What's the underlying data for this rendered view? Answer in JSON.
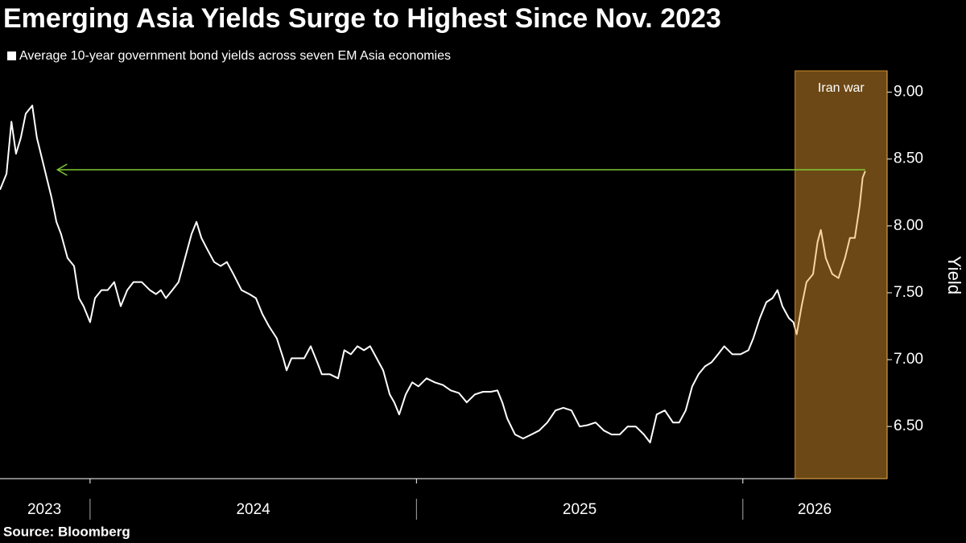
{
  "chart_data": {
    "type": "line",
    "title": "Emerging Asia Yields Surge to Highest Since Nov. 2023",
    "source": "Source: Bloomberg",
    "y_axis_label": "Yield",
    "ylim": [
      6.11,
      9.16
    ],
    "yticks": [
      {
        "value": 6.5,
        "label": "6.50"
      },
      {
        "value": 7,
        "label": "7.00"
      },
      {
        "value": 7.5,
        "label": "7.50"
      },
      {
        "value": 8,
        "label": "8.00"
      },
      {
        "value": 8.5,
        "label": "8.50"
      },
      {
        "value": 9,
        "label": "9.00"
      }
    ],
    "xlim": [
      2023.724,
      2026.442
    ],
    "xticks": [
      {
        "value": 2023.86,
        "label": "2023"
      },
      {
        "value": 2024.5,
        "label": "2024"
      },
      {
        "value": 2025.5,
        "label": "2025"
      },
      {
        "value": 2026.22,
        "label": "2026"
      }
    ],
    "xdividers": [
      2024,
      2025,
      2026
    ],
    "band": {
      "label": "Iran war",
      "start": 2026.16,
      "color": "#f0a030"
    },
    "reference_line": {
      "value": 8.42,
      "x": [
        2023.9,
        2026.375
      ],
      "color": "#7ec832"
    },
    "x": [
      2023.724,
      2023.744,
      2023.759,
      2023.773,
      2023.788,
      2023.803,
      2023.823,
      2023.837,
      2023.852,
      2023.867,
      2023.882,
      2023.897,
      2023.911,
      2023.931,
      2023.951,
      2023.966,
      2023.98,
      2024.0,
      2024.015,
      2024.035,
      2024.054,
      2024.074,
      2024.094,
      2024.114,
      2024.133,
      2024.158,
      2024.183,
      2024.202,
      2024.217,
      2024.232,
      2024.252,
      2024.271,
      2024.291,
      2024.311,
      2024.326,
      2024.341,
      2024.36,
      2024.38,
      2024.4,
      2024.419,
      2024.439,
      2024.464,
      2024.488,
      2024.508,
      2024.528,
      2024.548,
      2024.572,
      2024.592,
      2024.602,
      2024.617,
      2024.636,
      2024.656,
      2024.676,
      2024.696,
      2024.71,
      2024.735,
      2024.76,
      2024.779,
      2024.799,
      2024.819,
      2024.839,
      2024.858,
      2024.878,
      2024.898,
      2024.918,
      2024.932,
      2024.947,
      2024.967,
      2024.987,
      2025.006,
      2025.031,
      2025.056,
      2025.081,
      2025.105,
      2025.13,
      2025.154,
      2025.179,
      2025.204,
      2025.228,
      2025.248,
      2025.263,
      2025.278,
      2025.302,
      2025.327,
      2025.352,
      2025.376,
      2025.401,
      2025.426,
      2025.45,
      2025.475,
      2025.5,
      2025.524,
      2025.549,
      2025.574,
      2025.598,
      2025.623,
      2025.647,
      2025.672,
      2025.697,
      2025.716,
      2025.736,
      2025.761,
      2025.786,
      2025.805,
      2025.825,
      2025.845,
      2025.864,
      2025.884,
      2025.904,
      2025.924,
      2025.943,
      2025.968,
      2025.993,
      2026.017,
      2026.032,
      2026.052,
      2026.072,
      2026.091,
      2026.106,
      2026.121,
      2026.141,
      2026.155,
      2026.165,
      2026.18,
      2026.195,
      2026.215,
      2026.229,
      2026.239,
      2026.254,
      2026.274,
      2026.293,
      2026.313,
      2026.328,
      2026.343,
      2026.358,
      2026.367,
      2026.375
    ],
    "series": [
      {
        "name": "Average 10-year government bond yields across seven EM Asia economies",
        "color": "#ffffff",
        "values": [
          8.27,
          8.39,
          8.78,
          8.54,
          8.66,
          8.84,
          8.9,
          8.66,
          8.51,
          8.36,
          8.21,
          8.03,
          7.94,
          7.76,
          7.7,
          7.46,
          7.4,
          7.28,
          7.46,
          7.52,
          7.52,
          7.58,
          7.4,
          7.52,
          7.58,
          7.58,
          7.52,
          7.49,
          7.52,
          7.46,
          7.52,
          7.58,
          7.76,
          7.94,
          8.03,
          7.91,
          7.82,
          7.73,
          7.7,
          7.73,
          7.64,
          7.52,
          7.49,
          7.46,
          7.34,
          7.25,
          7.16,
          7.01,
          6.92,
          7.01,
          7.01,
          7.01,
          7.1,
          6.98,
          6.89,
          6.89,
          6.86,
          7.07,
          7.04,
          7.1,
          7.07,
          7.1,
          7.01,
          6.92,
          6.74,
          6.68,
          6.59,
          6.74,
          6.83,
          6.8,
          6.86,
          6.83,
          6.81,
          6.77,
          6.75,
          6.68,
          6.74,
          6.76,
          6.76,
          6.77,
          6.68,
          6.56,
          6.44,
          6.41,
          6.44,
          6.47,
          6.53,
          6.62,
          6.64,
          6.62,
          6.5,
          6.51,
          6.53,
          6.47,
          6.44,
          6.44,
          6.5,
          6.5,
          6.44,
          6.38,
          6.59,
          6.62,
          6.53,
          6.53,
          6.62,
          6.8,
          6.89,
          6.95,
          6.98,
          7.04,
          7.1,
          7.04,
          7.04,
          7.07,
          7.16,
          7.31,
          7.43,
          7.46,
          7.52,
          7.4,
          7.31,
          7.28,
          7.19,
          7.4,
          7.58,
          7.64,
          7.88,
          7.97,
          7.76,
          7.64,
          7.61,
          7.76,
          7.91,
          7.91,
          8.15,
          8.36,
          8.41
        ]
      }
    ]
  }
}
